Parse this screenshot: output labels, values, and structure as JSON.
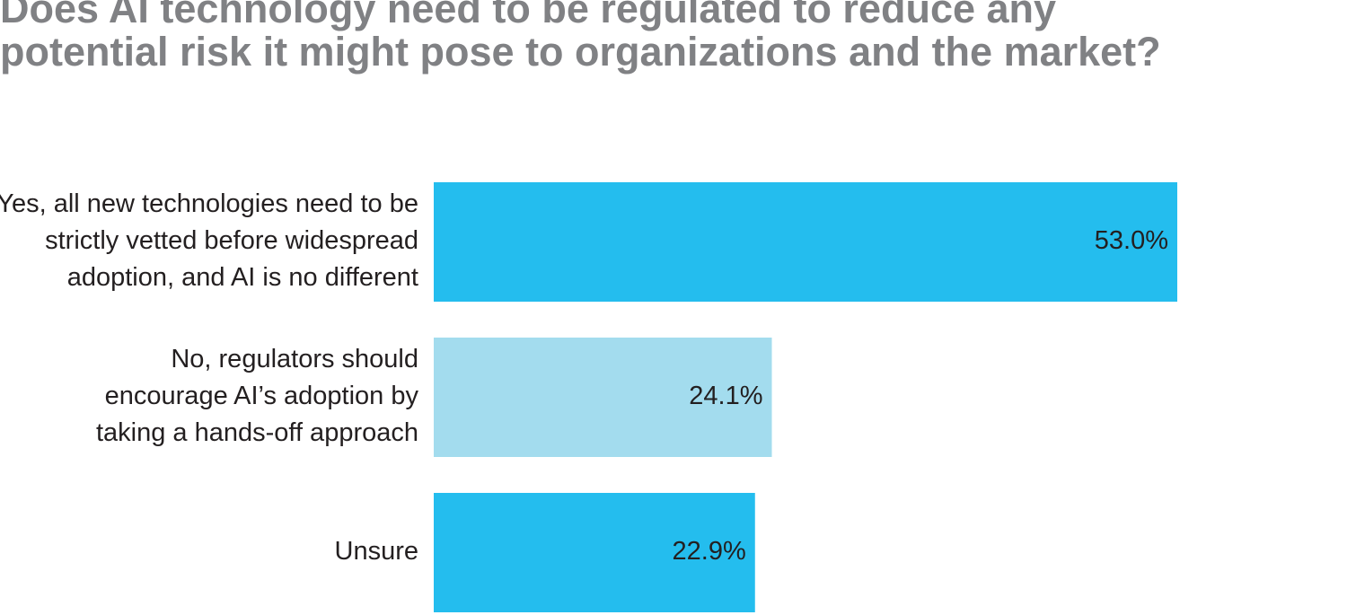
{
  "title_lines": [
    "Does AI technology need to be regulated to reduce any",
    "potential risk it might pose to organizations and the market?"
  ],
  "chart_data": {
    "type": "bar",
    "orientation": "horizontal",
    "title": "Does AI technology need to be regulated to reduce any potential risk it might pose to organizations and the market?",
    "categories": [
      [
        "Yes, all new technologies need to be",
        "strictly vetted before widespread",
        "adoption, and AI is no different"
      ],
      [
        "No, regulators should",
        "encourage AI’s adoption by",
        "taking a hands-off approach"
      ],
      [
        "Unsure"
      ]
    ],
    "values": [
      53.0,
      24.1,
      22.9
    ],
    "value_labels": [
      "53.0%",
      "24.1%",
      "22.9%"
    ],
    "bar_colors": [
      "#24bdee",
      "#a3dcee",
      "#24bdee"
    ],
    "xlim": [
      0,
      53.0
    ],
    "grid": false,
    "legend": "none"
  }
}
